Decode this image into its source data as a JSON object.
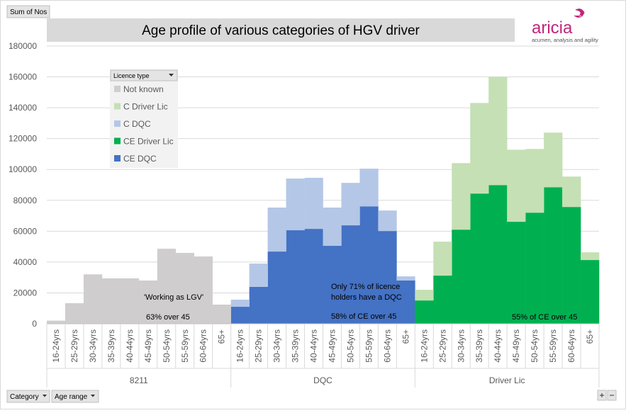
{
  "chart_data": {
    "type": "stacked-bar",
    "field_button": "Sum of Nos",
    "title": "Age profile of various categories of HGV driver",
    "brand": "aricia",
    "brand_tagline": "acumen, analysis and agility",
    "legend_title": "Licence type",
    "category_groups": [
      "8211",
      "DQC",
      "Driver Lic"
    ],
    "categories": [
      "16-24yrs",
      "25-29yrs",
      "30-34yrs",
      "35-39yrs",
      "40-44yrs",
      "45-49yrs",
      "50-54yrs",
      "55-59yrs",
      "60-64yrs",
      "65+",
      "16-24yrs",
      "25-29yrs",
      "30-34yrs",
      "35-39yrs",
      "40-44yrs",
      "45-49yrs",
      "50-54yrs",
      "55-59yrs",
      "60-64yrs",
      "65+",
      "16-24yrs",
      "25-29yrs",
      "30-34yrs",
      "35-39yrs",
      "40-44yrs",
      "45-49yrs",
      "50-54yrs",
      "55-59yrs",
      "60-64yrs",
      "65+"
    ],
    "series": [
      {
        "name": "Not known",
        "color": "#cfcdcd",
        "values": [
          2000,
          13300,
          32000,
          29400,
          29400,
          28000,
          48600,
          45900,
          43600,
          12400,
          null,
          null,
          null,
          null,
          null,
          null,
          null,
          null,
          null,
          null,
          null,
          null,
          null,
          null,
          null,
          null,
          null,
          null,
          null,
          null
        ]
      },
      {
        "name": "C Driver Lic",
        "color": "#c5e0b4",
        "values": [
          null,
          null,
          null,
          null,
          null,
          null,
          null,
          null,
          null,
          null,
          null,
          null,
          null,
          null,
          null,
          null,
          null,
          null,
          null,
          null,
          6900,
          22000,
          43100,
          58700,
          70200,
          46700,
          41300,
          35400,
          19700,
          5000
        ]
      },
      {
        "name": "C DQC",
        "color": "#b4c7e7",
        "values": [
          null,
          null,
          null,
          null,
          null,
          null,
          null,
          null,
          null,
          null,
          4600,
          15100,
          28500,
          33500,
          33100,
          24800,
          27500,
          24400,
          13300,
          2700,
          null,
          null,
          null,
          null,
          null,
          null,
          null,
          null,
          null,
          null
        ]
      },
      {
        "name": "CE Driver Lic",
        "color": "#00b050",
        "values": [
          null,
          null,
          null,
          null,
          null,
          null,
          null,
          null,
          null,
          null,
          null,
          null,
          null,
          null,
          null,
          null,
          null,
          null,
          null,
          null,
          15100,
          31200,
          61000,
          84400,
          89900,
          66100,
          72000,
          88500,
          75700,
          41300
        ]
      },
      {
        "name": "CE DQC",
        "color": "#4472c4",
        "values": [
          null,
          null,
          null,
          null,
          null,
          null,
          null,
          null,
          null,
          null,
          11000,
          23900,
          46800,
          60600,
          61500,
          50500,
          63800,
          76100,
          60100,
          28000,
          null,
          null,
          null,
          null,
          null,
          null,
          null,
          null,
          null,
          null
        ]
      }
    ],
    "ylim": [
      0,
      180000
    ],
    "yticks": [
      0,
      20000,
      40000,
      60000,
      80000,
      100000,
      120000,
      140000,
      160000,
      180000
    ],
    "grid": true,
    "annotations": [
      "'Working as LGV'",
      "63% over 45",
      "Only 71% of licence",
      "holders have a DQC",
      "58% of CE over 45",
      "55% of CE over 45"
    ],
    "filter_buttons": [
      "Category",
      "Age range"
    ]
  }
}
